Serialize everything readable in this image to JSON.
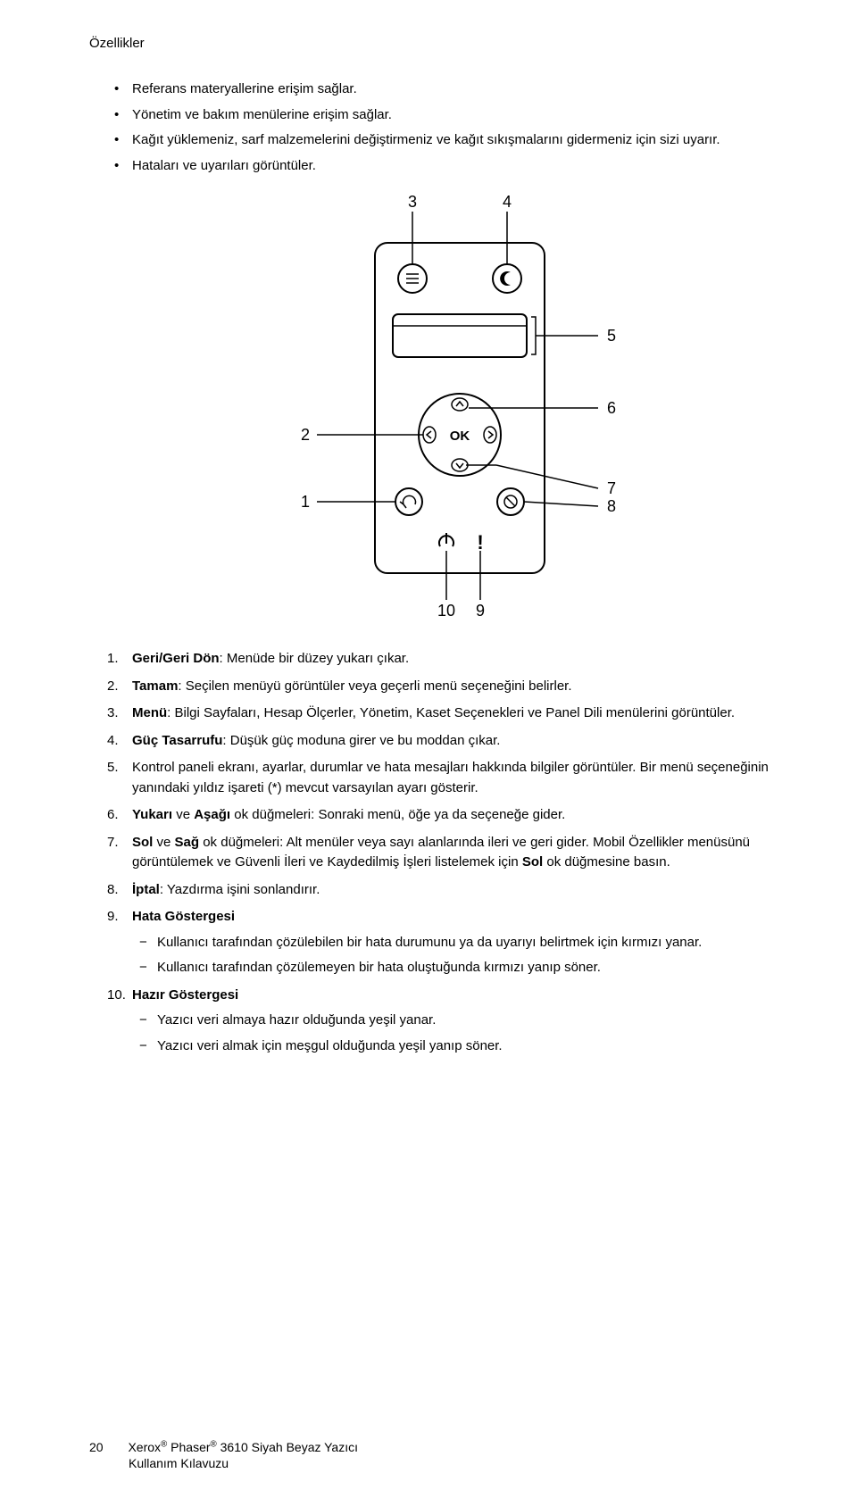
{
  "header": "Özellikler",
  "bullets": [
    "Referans materyallerine erişim sağlar.",
    "Yönetim ve bakım menülerine erişim sağlar.",
    "Kağıt yüklemeniz, sarf malzemelerini değiştirmeniz ve kağıt sıkışmalarını gidermeniz için sizi uyarır.",
    "Hataları ve uyarıları görüntüler."
  ],
  "diagram": {
    "callout_labels": [
      "1",
      "2",
      "3",
      "4",
      "5",
      "6",
      "7",
      "8",
      "9",
      "10"
    ],
    "stroke_color": "#000000",
    "background": "#ffffff",
    "label_fontsize": 18,
    "ok_text": "OK"
  },
  "items": [
    {
      "term": "Geri/Geri Dön",
      "desc": ": Menüde bir düzey yukarı çıkar."
    },
    {
      "term": "Tamam",
      "desc": ": Seçilen menüyü görüntüler veya geçerli menü seçeneğini belirler."
    },
    {
      "term": "Menü",
      "desc": ": Bilgi Sayfaları, Hesap Ölçerler, Yönetim, Kaset Seçenekleri ve Panel Dili menülerini görüntüler."
    },
    {
      "term": "Güç Tasarrufu",
      "desc": ": Düşük güç moduna girer ve bu moddan çıkar."
    },
    {
      "term": "",
      "desc": "Kontrol paneli ekranı, ayarlar, durumlar ve hata mesajları hakkında bilgiler görüntüler. Bir menü seçeneğinin yanındaki yıldız işareti (*) mevcut varsayılan ayarı gösterir."
    },
    {
      "term_html": "<span class=\"term\">Yukarı</span> ve <span class=\"term\">Aşağı</span> ok düğmeleri: Sonraki menü, öğe ya da seçeneğe gider."
    },
    {
      "term_html": "<span class=\"term\">Sol</span> ve <span class=\"term\">Sağ</span> ok düğmeleri: Alt menüler veya sayı alanlarında ileri ve geri gider. Mobil Özellikler menüsünü görüntülemek ve Güvenli İleri ve Kaydedilmiş İşleri listelemek için <span class=\"term\">Sol</span> ok düğmesine basın."
    },
    {
      "term": "İptal",
      "desc": ": Yazdırma işini sonlandırır."
    },
    {
      "term": "Hata Göstergesi",
      "desc": "",
      "sub": [
        "Kullanıcı tarafından çözülebilen bir hata durumunu ya da uyarıyı belirtmek için kırmızı yanar.",
        "Kullanıcı tarafından çözülemeyen bir hata oluştuğunda kırmızı yanıp söner."
      ]
    },
    {
      "term": "Hazır Göstergesi",
      "desc": "",
      "sub": [
        "Yazıcı veri almaya hazır olduğunda yeşil yanar.",
        "Yazıcı veri almak için meşgul olduğunda yeşil yanıp söner."
      ]
    }
  ],
  "footer": {
    "pagenum": "20",
    "line1_pre": "Xerox",
    "line1_mid": " Phaser",
    "line1_post": " 3610 Siyah Beyaz Yazıcı",
    "line2": "Kullanım Kılavuzu",
    "reg": "®"
  }
}
